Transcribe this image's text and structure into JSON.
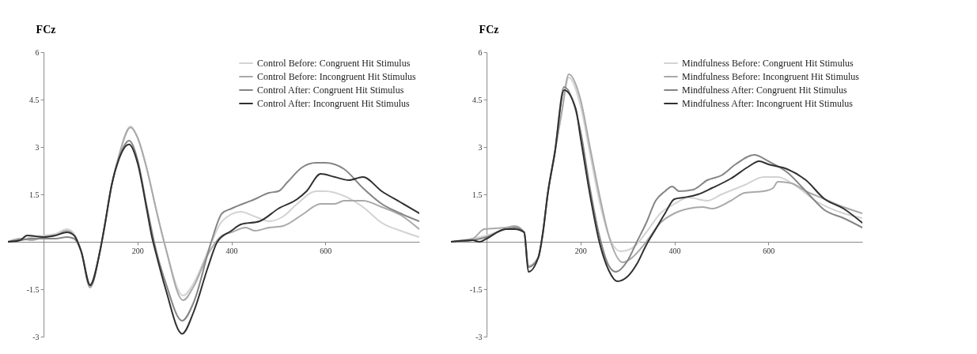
{
  "chart_data": [
    {
      "type": "line",
      "ylabel": "FCz",
      "xlim": [
        -76,
        800
      ],
      "ylim": [
        -3,
        6
      ],
      "xticks": [
        200,
        400,
        600
      ],
      "yticks": [
        -3,
        -1.5,
        1.5,
        3,
        4.5,
        6
      ],
      "grid": false,
      "legend": "top right",
      "marker": "none",
      "line_style": "solid",
      "series": [
        {
          "name": "Control Before: Congruent Hit Stimulus",
          "color": "#d3d3d3",
          "x": [
            -76,
            -50,
            -25,
            0,
            25,
            50,
            65,
            80,
            99,
            120,
            130,
            145,
            160,
            185,
            200,
            220,
            240,
            260,
            297,
            320,
            350,
            380,
            420,
            450,
            480,
            510,
            540,
            580,
            600,
            640,
            680,
            720,
            760,
            800
          ],
          "values": [
            0,
            0.05,
            0.15,
            0.2,
            0.25,
            0.4,
            0.25,
            -0.3,
            -1.4,
            -0.3,
            0.5,
            1.8,
            2.7,
            3.65,
            3.3,
            2.3,
            1.0,
            -0.2,
            -1.7,
            -1.3,
            -0.3,
            0.65,
            0.95,
            0.8,
            0.65,
            0.8,
            1.2,
            1.6,
            1.6,
            1.45,
            1.1,
            0.6,
            0.35,
            0.15
          ]
        },
        {
          "name": "Control Before: Incongruent Hit Stimulus",
          "color": "#a9a9a9",
          "x": [
            -76,
            -50,
            -25,
            0,
            25,
            50,
            65,
            80,
            99,
            120,
            130,
            145,
            160,
            185,
            200,
            220,
            240,
            260,
            297,
            320,
            350,
            380,
            400,
            430,
            450,
            480,
            510,
            550,
            590,
            620,
            640,
            680,
            720,
            760,
            800
          ],
          "values": [
            0,
            0.1,
            0.05,
            0.15,
            0.2,
            0.35,
            0.2,
            -0.3,
            -1.45,
            -0.3,
            0.5,
            1.8,
            2.7,
            3.62,
            3.3,
            2.3,
            1.0,
            -0.2,
            -1.85,
            -1.4,
            -0.4,
            0.2,
            0.3,
            0.45,
            0.35,
            0.45,
            0.5,
            0.85,
            1.2,
            1.2,
            1.3,
            1.3,
            1.1,
            0.85,
            0.4
          ]
        },
        {
          "name": "Control After: Congruent Hit Stimulus",
          "color": "#858585",
          "x": [
            -76,
            -50,
            -25,
            0,
            25,
            50,
            65,
            80,
            99,
            120,
            130,
            145,
            160,
            182,
            200,
            220,
            240,
            260,
            295,
            320,
            357,
            380,
            400,
            450,
            480,
            500,
            520,
            550,
            580,
            600,
            640,
            680,
            720,
            760,
            800
          ],
          "values": [
            0,
            0.05,
            0.1,
            0.1,
            0.1,
            0.15,
            0.1,
            -0.3,
            -1.35,
            -0.3,
            0.5,
            1.8,
            2.6,
            3.2,
            2.6,
            1.1,
            -0.3,
            -1.3,
            -2.5,
            -1.9,
            0,
            0.9,
            1.05,
            1.35,
            1.55,
            1.6,
            1.9,
            2.35,
            2.5,
            2.5,
            2.3,
            1.7,
            1.2,
            0.9,
            0.65
          ]
        },
        {
          "name": "Control After: Incongruent Hit Stimulus",
          "color": "#303030",
          "x": [
            -76,
            -50,
            -35,
            0,
            25,
            50,
            65,
            80,
            99,
            120,
            130,
            145,
            160,
            182,
            200,
            220,
            230,
            240,
            260,
            295,
            320,
            350,
            370,
            400,
            420,
            460,
            500,
            540,
            560,
            590,
            620,
            650,
            680,
            720,
            760,
            800
          ],
          "values": [
            0,
            0.05,
            0.2,
            0.15,
            0.2,
            0.3,
            0.2,
            -0.3,
            -1.38,
            -0.3,
            0.5,
            1.8,
            2.6,
            3.08,
            2.5,
            1.0,
            0.2,
            -0.4,
            -1.5,
            -2.91,
            -2.2,
            -0.8,
            0,
            0.35,
            0.55,
            0.65,
            1.05,
            1.35,
            1.6,
            2.15,
            2.05,
            1.95,
            2.05,
            1.6,
            1.25,
            0.9
          ]
        }
      ]
    },
    {
      "type": "line",
      "ylabel": "FCz",
      "xlim": [
        -76,
        800
      ],
      "ylim": [
        -3,
        6
      ],
      "xticks": [
        200,
        400,
        600
      ],
      "yticks": [
        -3,
        -1.5,
        1.5,
        3,
        4.5,
        6
      ],
      "grid": false,
      "legend": "top right",
      "marker": "none",
      "line_style": "solid",
      "series": [
        {
          "name": "Mindfulness Before: Congruent Hit Stimulus",
          "color": "#d3d3d3",
          "x": [
            -76,
            -30,
            0,
            40,
            60,
            80,
            89,
            110,
            120,
            130,
            145,
            160,
            175,
            200,
            220,
            240,
            260,
            285,
            310,
            340,
            370,
            400,
            430,
            470,
            500,
            550,
            590,
            620,
            660,
            700,
            760,
            800
          ],
          "values": [
            0,
            0.1,
            0.2,
            0.4,
            0.45,
            0.3,
            -0.75,
            -0.5,
            0.3,
            1.5,
            2.8,
            4.1,
            5.2,
            4.3,
            2.8,
            1.3,
            0.2,
            -0.3,
            -0.2,
            0.3,
            0.9,
            1.2,
            1.4,
            1.3,
            1.5,
            1.8,
            2.05,
            2.05,
            1.75,
            1.3,
            0.9,
            0.75
          ]
        },
        {
          "name": "Mindfulness Before: Incongruent Hit Stimulus",
          "color": "#a9a9a9",
          "x": [
            -76,
            -30,
            -5,
            40,
            60,
            80,
            89,
            110,
            120,
            130,
            145,
            160,
            175,
            200,
            220,
            240,
            260,
            290,
            310,
            340,
            370,
            400,
            430,
            460,
            480,
            520,
            550,
            590,
            610,
            620,
            650,
            680,
            720,
            760,
            800
          ],
          "values": [
            0,
            0.1,
            0.4,
            0.45,
            0.5,
            0.3,
            -0.8,
            -0.5,
            0.3,
            1.5,
            2.8,
            4.1,
            5.3,
            4.5,
            3.0,
            1.5,
            0.2,
            -0.65,
            -0.5,
            0,
            0.6,
            0.9,
            1.05,
            1.1,
            1.05,
            1.3,
            1.55,
            1.6,
            1.7,
            1.9,
            1.85,
            1.6,
            1.35,
            1.1,
            0.9
          ]
        },
        {
          "name": "Mindfulness After: Congruent Hit Stimulus",
          "color": "#858585",
          "x": [
            -76,
            -30,
            0,
            40,
            60,
            80,
            89,
            110,
            120,
            130,
            145,
            165,
            200,
            220,
            240,
            260,
            275,
            300,
            320,
            340,
            360,
            380,
            395,
            410,
            440,
            470,
            500,
            530,
            570,
            600,
            640,
            680,
            720,
            760,
            800
          ],
          "values": [
            0,
            0.05,
            0.15,
            0.4,
            0.45,
            0.3,
            -0.8,
            -0.5,
            0.3,
            1.5,
            2.8,
            4.9,
            3.5,
            1.7,
            0.2,
            -0.75,
            -0.95,
            -0.6,
            0,
            0.6,
            1.3,
            1.6,
            1.75,
            1.6,
            1.65,
            1.95,
            2.1,
            2.45,
            2.75,
            2.55,
            2.2,
            1.6,
            1.0,
            0.75,
            0.45
          ]
        },
        {
          "name": "Mindfulness After: Incongruent Hit Stimulus",
          "color": "#303030",
          "x": [
            -76,
            -30,
            -15,
            0,
            40,
            60,
            80,
            89,
            110,
            120,
            130,
            145,
            165,
            190,
            200,
            220,
            240,
            260,
            278,
            300,
            320,
            340,
            360,
            380,
            400,
            420,
            450,
            480,
            520,
            560,
            580,
            600,
            640,
            680,
            720,
            760,
            800
          ],
          "values": [
            0,
            0.05,
            0,
            0.1,
            0.4,
            0.4,
            0.3,
            -0.95,
            -0.5,
            0.3,
            1.5,
            2.8,
            4.8,
            4.2,
            3.3,
            1.5,
            0,
            -0.9,
            -1.25,
            -1.1,
            -0.7,
            -0.1,
            0.4,
            0.9,
            1.35,
            1.4,
            1.5,
            1.7,
            2.0,
            2.4,
            2.55,
            2.45,
            2.3,
            1.95,
            1.35,
            1.05,
            0.6
          ]
        }
      ]
    }
  ]
}
